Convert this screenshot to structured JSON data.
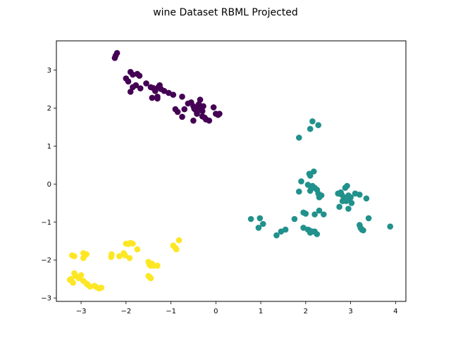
{
  "chart_data": {
    "type": "scatter",
    "title": "wine Dataset RBML Projected",
    "xlabel": "",
    "ylabel": "",
    "xlim": [
      -3.55,
      4.23
    ],
    "ylim": [
      -3.09,
      3.77
    ],
    "xticks": [
      -3,
      -2,
      -1,
      0,
      1,
      2,
      3,
      4
    ],
    "yticks": [
      -3,
      -2,
      -1,
      0,
      1,
      2,
      3
    ],
    "grid": false,
    "legend": "none",
    "colors": {
      "purple": "#440154",
      "teal": "#21918c",
      "yellow": "#fde725"
    },
    "series": [
      {
        "color": "#440154",
        "points": [
          [
            -2.2,
            3.45
          ],
          [
            -2.23,
            3.38
          ],
          [
            -2.25,
            3.32
          ],
          [
            -2.0,
            2.78
          ],
          [
            -1.95,
            2.7
          ],
          [
            -1.9,
            2.95
          ],
          [
            -1.85,
            2.88
          ],
          [
            -1.78,
            2.6
          ],
          [
            -1.75,
            2.9
          ],
          [
            -1.7,
            2.85
          ],
          [
            -1.68,
            2.52
          ],
          [
            -1.9,
            2.43
          ],
          [
            -1.85,
            2.55
          ],
          [
            -1.55,
            2.65
          ],
          [
            -1.45,
            2.55
          ],
          [
            -1.4,
            2.53
          ],
          [
            -1.42,
            2.27
          ],
          [
            -1.35,
            2.45
          ],
          [
            -1.3,
            2.3
          ],
          [
            -1.28,
            2.55
          ],
          [
            -1.25,
            2.6
          ],
          [
            -1.22,
            2.5
          ],
          [
            -1.3,
            2.25
          ],
          [
            -1.15,
            2.45
          ],
          [
            -1.05,
            2.4
          ],
          [
            -0.95,
            2.35
          ],
          [
            -0.9,
            1.97
          ],
          [
            -0.85,
            1.9
          ],
          [
            -0.75,
            2.3
          ],
          [
            -0.75,
            1.77
          ],
          [
            -0.7,
            1.97
          ],
          [
            -0.62,
            2.12
          ],
          [
            -0.55,
            2.15
          ],
          [
            -0.5,
            2.05
          ],
          [
            -0.5,
            1.67
          ],
          [
            -0.45,
            1.95
          ],
          [
            -0.42,
            1.85
          ],
          [
            -0.38,
            2.1
          ],
          [
            -0.35,
            2.22
          ],
          [
            -0.32,
            1.95
          ],
          [
            -0.3,
            1.78
          ],
          [
            -0.28,
            2.05
          ],
          [
            -0.3,
            1.92
          ],
          [
            -0.25,
            1.75
          ],
          [
            -0.22,
            1.7
          ],
          [
            -0.15,
            1.67
          ],
          [
            -0.05,
            2.02
          ],
          [
            0.0,
            1.85
          ],
          [
            0.05,
            1.82
          ],
          [
            0.08,
            1.85
          ],
          [
            -0.48,
            1.98
          ],
          [
            -0.4,
            2.0
          ]
        ]
      },
      {
        "color": "#21918c",
        "points": [
          [
            1.85,
            1.22
          ],
          [
            2.15,
            1.65
          ],
          [
            2.1,
            1.45
          ],
          [
            2.28,
            1.55
          ],
          [
            2.08,
            0.27
          ],
          [
            2.1,
            0.22
          ],
          [
            2.18,
            0.33
          ],
          [
            1.9,
            0.07
          ],
          [
            1.85,
            -0.2
          ],
          [
            2.05,
            -0.02
          ],
          [
            2.1,
            -0.18
          ],
          [
            2.15,
            -0.05
          ],
          [
            2.2,
            -0.1
          ],
          [
            2.25,
            -0.15
          ],
          [
            2.28,
            -0.25
          ],
          [
            2.3,
            -0.35
          ],
          [
            2.35,
            -0.3
          ],
          [
            2.12,
            -0.12
          ],
          [
            2.72,
            -0.25
          ],
          [
            2.78,
            -0.22
          ],
          [
            2.8,
            -0.28
          ],
          [
            2.88,
            -0.1
          ],
          [
            2.92,
            -0.05
          ],
          [
            2.85,
            -0.35
          ],
          [
            2.9,
            -0.45
          ],
          [
            2.95,
            -0.3
          ],
          [
            2.98,
            -0.4
          ],
          [
            3.0,
            -0.35
          ],
          [
            3.02,
            -0.5
          ],
          [
            2.75,
            -0.6
          ],
          [
            2.95,
            -0.65
          ],
          [
            3.1,
            -0.25
          ],
          [
            3.2,
            -0.28
          ],
          [
            3.35,
            -0.38
          ],
          [
            2.82,
            -0.45
          ],
          [
            2.4,
            -0.8
          ],
          [
            2.3,
            -0.7
          ],
          [
            2.2,
            -0.8
          ],
          [
            2.0,
            -0.78
          ],
          [
            1.95,
            -0.75
          ],
          [
            1.75,
            -0.92
          ],
          [
            0.78,
            -0.92
          ],
          [
            0.98,
            -0.9
          ],
          [
            0.95,
            -1.15
          ],
          [
            1.05,
            -1.05
          ],
          [
            1.35,
            -1.35
          ],
          [
            1.45,
            -1.25
          ],
          [
            1.55,
            -1.2
          ],
          [
            1.95,
            -1.15
          ],
          [
            2.05,
            -1.2
          ],
          [
            2.1,
            -1.28
          ],
          [
            2.15,
            -1.25
          ],
          [
            2.2,
            -1.25
          ],
          [
            2.25,
            -1.32
          ],
          [
            2.08,
            -1.22
          ],
          [
            3.2,
            -1.08
          ],
          [
            3.22,
            -1.15
          ],
          [
            3.25,
            -1.2
          ],
          [
            3.28,
            -1.22
          ],
          [
            3.4,
            -0.9
          ],
          [
            3.88,
            -1.12
          ]
        ]
      },
      {
        "color": "#fde725",
        "points": [
          [
            -3.2,
            -1.88
          ],
          [
            -3.15,
            -1.9
          ],
          [
            -2.95,
            -1.82
          ],
          [
            -2.92,
            -1.88
          ],
          [
            -2.88,
            -1.85
          ],
          [
            -2.95,
            -1.95
          ],
          [
            -3.22,
            -2.5
          ],
          [
            -3.18,
            -2.6
          ],
          [
            -3.15,
            -2.35
          ],
          [
            -3.12,
            -2.42
          ],
          [
            -3.05,
            -2.48
          ],
          [
            -3.0,
            -2.4
          ],
          [
            -2.95,
            -2.55
          ],
          [
            -2.88,
            -2.62
          ],
          [
            -2.85,
            -2.65
          ],
          [
            -2.8,
            -2.7
          ],
          [
            -2.7,
            -2.68
          ],
          [
            -2.65,
            -2.72
          ],
          [
            -2.6,
            -2.75
          ],
          [
            -2.55,
            -2.73
          ],
          [
            -3.25,
            -2.52
          ],
          [
            -2.32,
            -1.85
          ],
          [
            -2.33,
            -1.92
          ],
          [
            -2.15,
            -1.9
          ],
          [
            -2.05,
            -1.82
          ],
          [
            -2.02,
            -1.88
          ],
          [
            -2.0,
            -1.57
          ],
          [
            -1.95,
            -1.58
          ],
          [
            -1.9,
            -1.55
          ],
          [
            -1.85,
            -1.57
          ],
          [
            -1.92,
            -1.95
          ],
          [
            -1.75,
            -1.72
          ],
          [
            -1.5,
            -2.05
          ],
          [
            -1.48,
            -2.12
          ],
          [
            -1.45,
            -2.15
          ],
          [
            -1.42,
            -2.1
          ],
          [
            -1.38,
            -2.15
          ],
          [
            -1.3,
            -2.15
          ],
          [
            -1.5,
            -2.42
          ],
          [
            -1.45,
            -2.48
          ],
          [
            -1.47,
            -2.45
          ],
          [
            -0.95,
            -1.62
          ],
          [
            -0.9,
            -1.68
          ],
          [
            -0.88,
            -1.72
          ],
          [
            -0.82,
            -1.48
          ]
        ]
      }
    ]
  }
}
